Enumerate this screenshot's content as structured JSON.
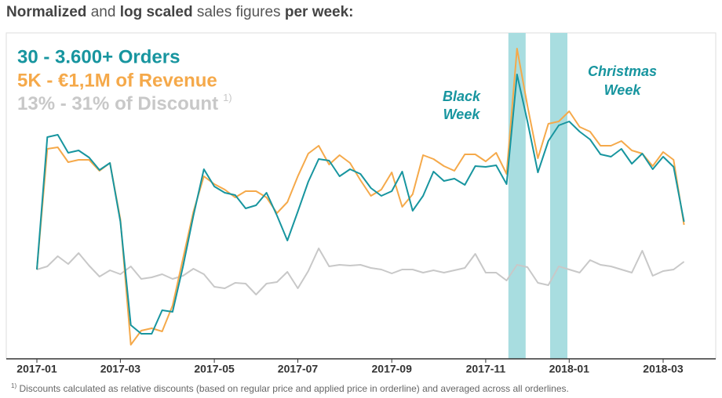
{
  "chart_data": {
    "type": "line",
    "title_parts": [
      {
        "text": "Normalized",
        "bold": true
      },
      {
        "text": " and ",
        "bold": false
      },
      {
        "text": "log scaled",
        "bold": true
      },
      {
        "text": " sales figures ",
        "bold": false
      },
      {
        "text": "per week:",
        "bold": true
      }
    ],
    "log_scale": true,
    "legend_corner": "top-left",
    "categories": [
      "2017-01",
      null,
      null,
      null,
      null,
      null,
      null,
      null,
      "2017-03",
      null,
      null,
      null,
      null,
      null,
      null,
      null,
      null,
      "2017-05",
      null,
      null,
      null,
      null,
      null,
      null,
      null,
      "2017-07",
      null,
      null,
      null,
      null,
      null,
      null,
      null,
      null,
      "2017-09",
      null,
      null,
      null,
      null,
      null,
      null,
      null,
      null,
      "2017-11",
      null,
      null,
      null,
      null,
      null,
      null,
      null,
      "2018-01",
      null,
      null,
      null,
      null,
      null,
      null,
      null,
      null,
      "2018-03",
      null,
      null
    ],
    "ylim": [
      0,
      420
    ],
    "series": [
      {
        "name": "30 - 3.600+ Orders",
        "color": "#17959f",
        "values": [
          114,
          283,
          286,
          263,
          266,
          257,
          241,
          250,
          175,
          43,
          32,
          32,
          62,
          60,
          118,
          183,
          242,
          220,
          212,
          209,
          192,
          196,
          212,
          183,
          151,
          188,
          226,
          255,
          253,
          233,
          242,
          236,
          218,
          208,
          214,
          239,
          189,
          208,
          239,
          227,
          230,
          222,
          246,
          245,
          247,
          223,
          363,
          303,
          238,
          278,
          298,
          303,
          290,
          280,
          261,
          258,
          268,
          249,
          262,
          242,
          258,
          245,
          175
        ]
      },
      {
        "name": "5K - €1,1M of Revenue",
        "color": "#f5a94a",
        "values": [
          114,
          268,
          270,
          251,
          254,
          254,
          240,
          250,
          178,
          18,
          36,
          39,
          35,
          68,
          128,
          188,
          233,
          223,
          216,
          206,
          214,
          214,
          206,
          186,
          200,
          233,
          262,
          272,
          248,
          260,
          250,
          228,
          208,
          216,
          238,
          194,
          210,
          260,
          255,
          246,
          240,
          261,
          261,
          252,
          263,
          236,
          396,
          323,
          256,
          300,
          303,
          316,
          296,
          290,
          272,
          272,
          278,
          266,
          262,
          246,
          264,
          254,
          171
        ]
      },
      {
        "name": "13% - 31% of Discount",
        "name_note": "1)",
        "color": "#c8c8c8",
        "values": [
          114,
          118,
          131,
          121,
          135,
          119,
          105,
          113,
          108,
          118,
          102,
          104,
          108,
          102,
          106,
          115,
          108,
          92,
          90,
          97,
          96,
          82,
          96,
          98,
          111,
          90,
          112,
          141,
          118,
          120,
          119,
          120,
          116,
          114,
          109,
          114,
          114,
          110,
          113,
          110,
          113,
          116,
          134,
          110,
          110,
          100,
          120,
          117,
          97,
          94,
          118,
          114,
          110,
          126,
          120,
          118,
          114,
          110,
          138,
          106,
          112,
          114,
          124
        ]
      }
    ],
    "highlights": [
      {
        "label": [
          "Black",
          "Week"
        ],
        "category": 46,
        "color": "#a8dde0"
      },
      {
        "label": [
          "Christmas",
          "Week"
        ],
        "category": 50,
        "color": "#a8dde0"
      }
    ],
    "footnote": {
      "mark": "1)",
      "text": " Discounts calculated as relative discounts (based on regular price and applied price in orderline) and averaged across all orderlines."
    }
  }
}
